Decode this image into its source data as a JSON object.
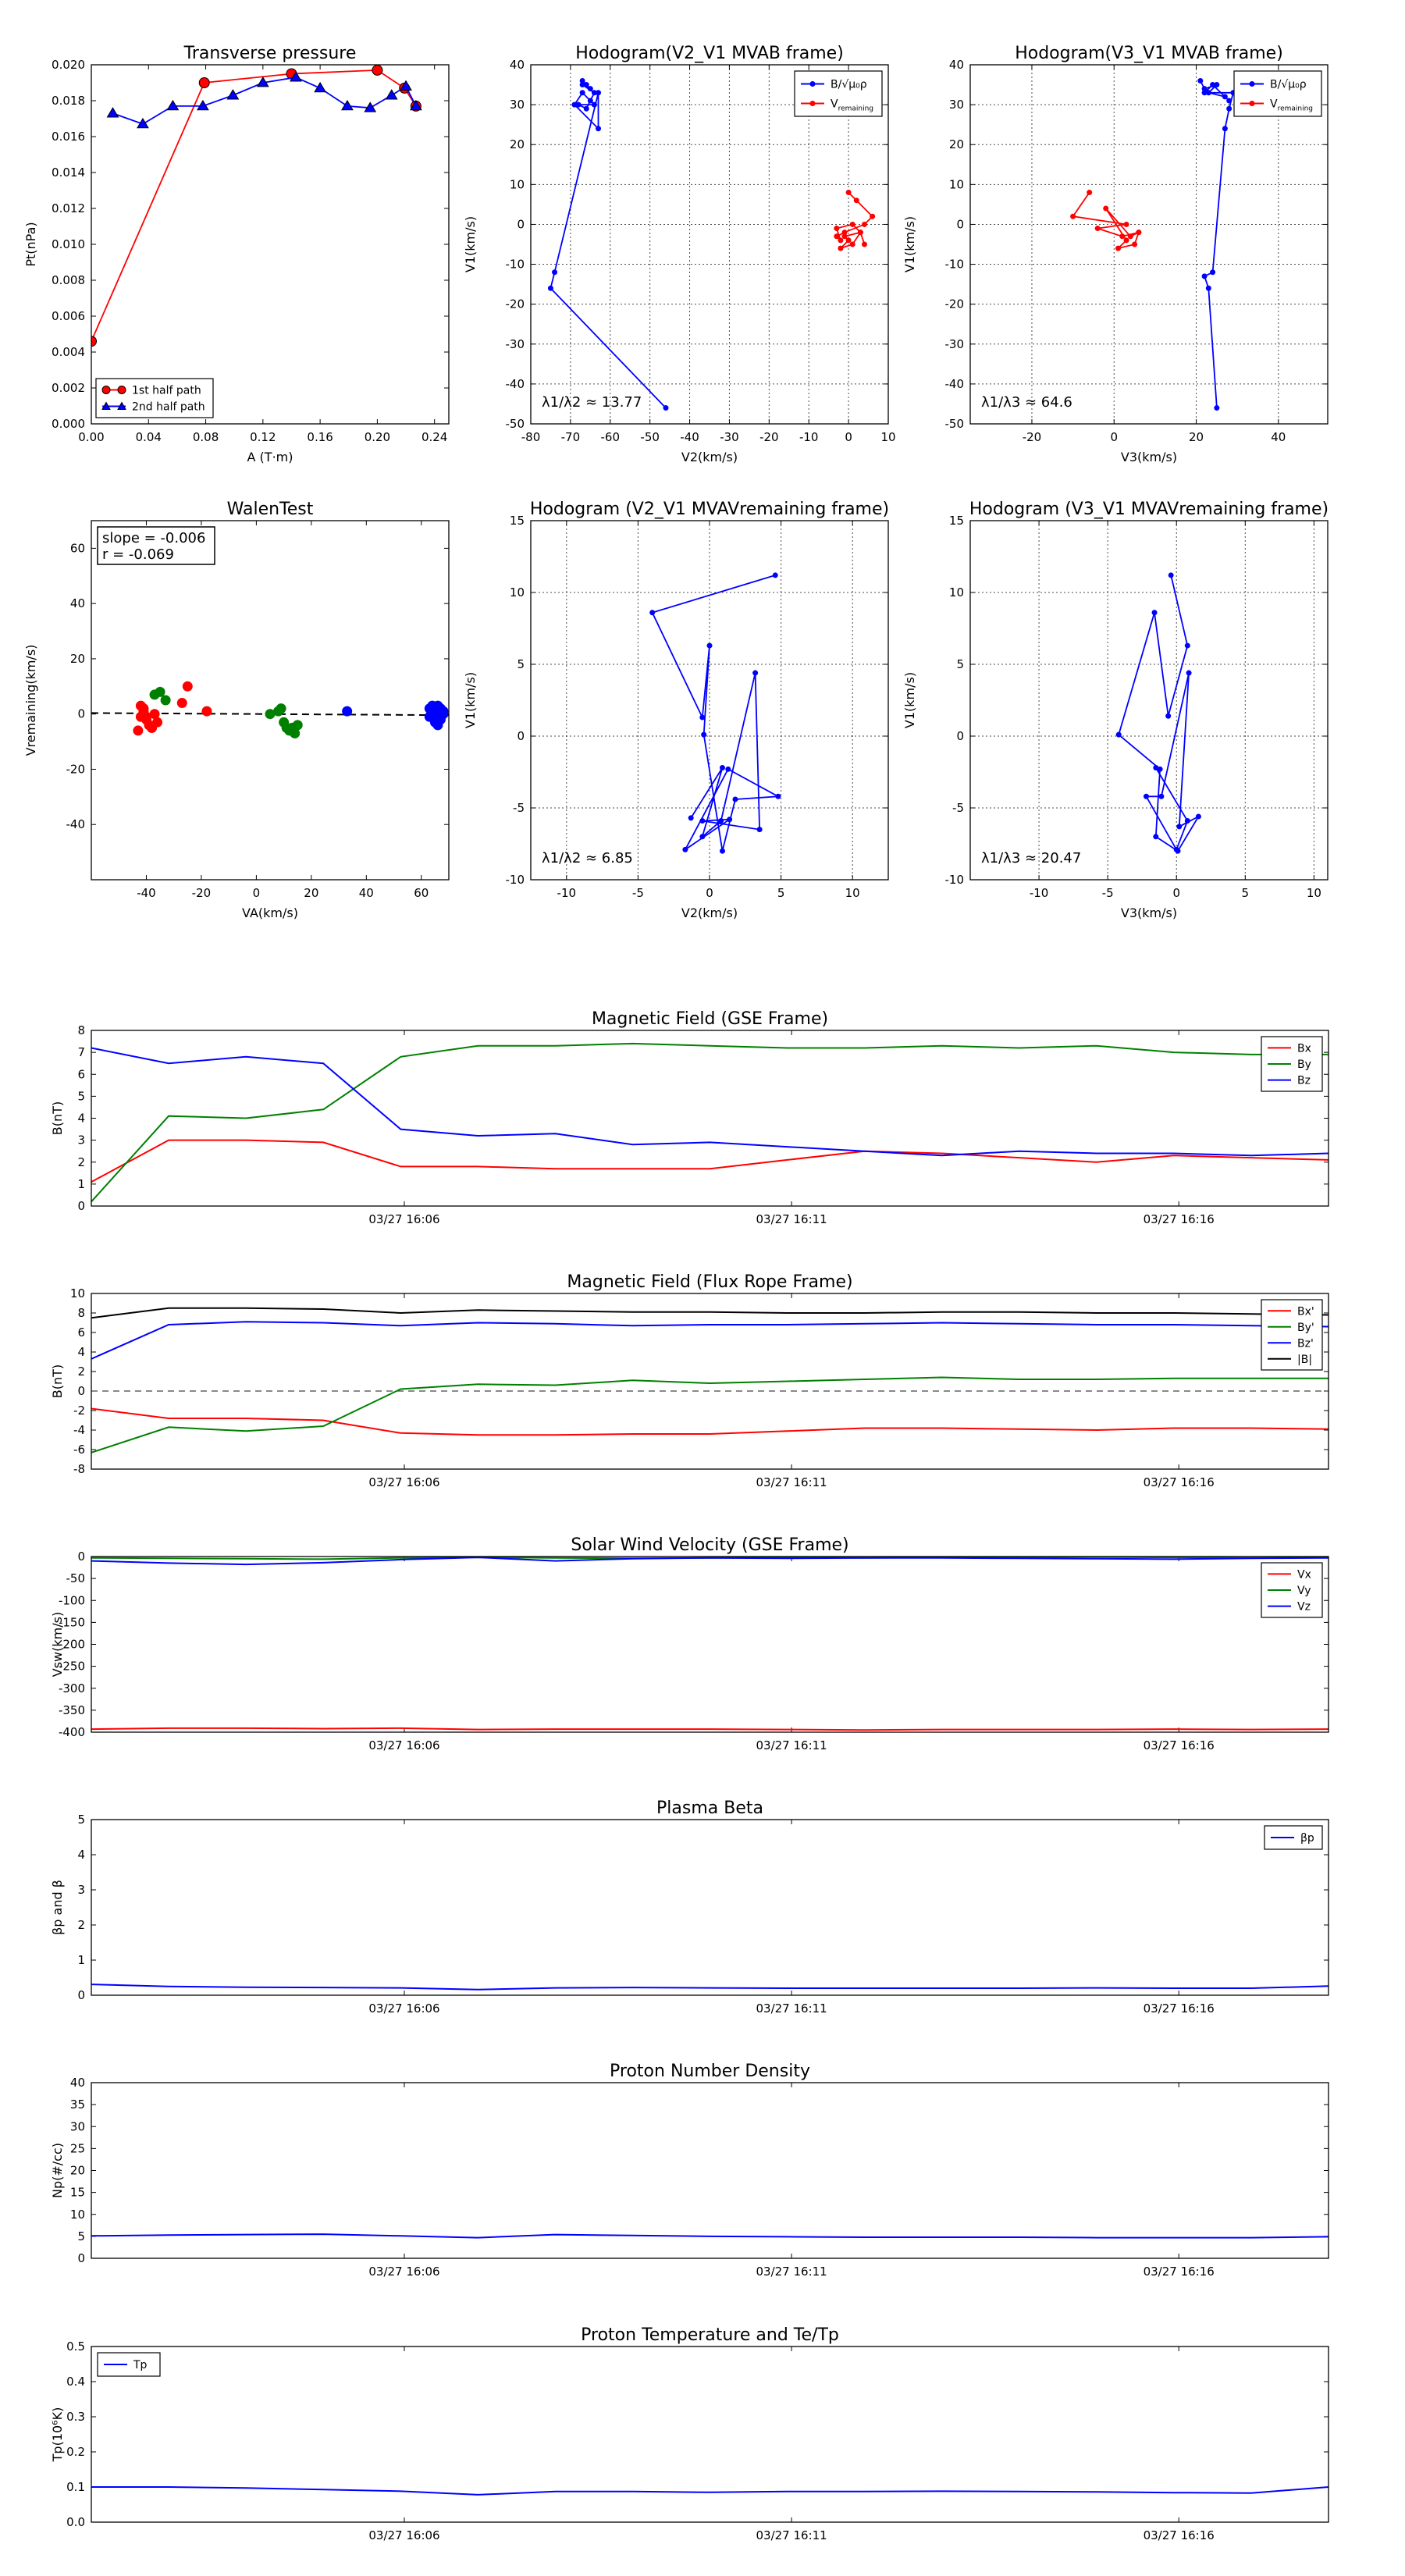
{
  "colors": {
    "red": "#ff0000",
    "green": "#008000",
    "blue": "#0000ff",
    "black": "#000000",
    "gray": "#888888"
  },
  "time_ticks": [
    "03/27 16:06",
    "03/27 16:11",
    "03/27 16:16"
  ],
  "chart_data": [
    {
      "id": "tp",
      "type": "line",
      "title": "Transverse pressure",
      "xlabel": "A (T·m)",
      "ylabel": "Pt(nPa)",
      "xlim": [
        0,
        0.25
      ],
      "ylim": [
        0,
        0.02
      ],
      "xticks": [
        0.0,
        0.04,
        0.08,
        0.12,
        0.16,
        0.2,
        0.24
      ],
      "xtick_decimals": 2,
      "yticks": [
        0.0,
        0.002,
        0.004,
        0.006,
        0.008,
        0.01,
        0.012,
        0.014,
        0.016,
        0.018,
        0.02
      ],
      "ytick_decimals": 3,
      "grid": false,
      "legend": "lower-left",
      "series": [
        {
          "name": "1st half path",
          "color": "#ff0000",
          "marker": "circle",
          "x": [
            0.0,
            0.079,
            0.14,
            0.2,
            0.219,
            0.227
          ],
          "y": [
            0.0046,
            0.019,
            0.0195,
            0.0197,
            0.0187,
            0.0177
          ]
        },
        {
          "name": "2nd half path",
          "color": "#0000ff",
          "marker": "triangle",
          "x": [
            0.015,
            0.036,
            0.057,
            0.078,
            0.099,
            0.12,
            0.143,
            0.16,
            0.179,
            0.195,
            0.21,
            0.22,
            0.227
          ],
          "y": [
            0.0173,
            0.0167,
            0.0177,
            0.0177,
            0.0183,
            0.019,
            0.0193,
            0.0187,
            0.0177,
            0.0176,
            0.0183,
            0.0188,
            0.0177
          ]
        }
      ]
    },
    {
      "id": "h1",
      "type": "line",
      "title": "Hodogram(V2_V1 MVAB frame)",
      "xlabel": "V2(km/s)",
      "ylabel": "V1(km/s)",
      "xlim": [
        -80,
        10
      ],
      "ylim": [
        -50,
        40
      ],
      "xticks": [
        -80,
        -70,
        -60,
        -50,
        -40,
        -30,
        -20,
        -10,
        0,
        10
      ],
      "yticks": [
        -50,
        -40,
        -30,
        -20,
        -10,
        0,
        10,
        20,
        30,
        40
      ],
      "grid": true,
      "legend": "top-right",
      "annotation": "λ1/λ2 ≈ 13.77",
      "series": [
        {
          "name": "B/√μ0ρ",
          "color": "#0000ff",
          "x": [
            -66,
            -67,
            -65,
            -67,
            -64,
            -65,
            -66,
            -68,
            -64,
            -67,
            -69,
            -63,
            -63,
            -74,
            -75,
            -46
          ],
          "y": [
            35,
            36,
            34,
            35,
            33,
            31,
            29,
            30,
            30,
            33,
            30,
            24,
            33,
            -12,
            -16,
            -46
          ]
        },
        {
          "name": "Vremaining",
          "color": "#ff0000",
          "x": [
            0,
            2,
            6,
            4,
            -1,
            -3,
            -2,
            -3,
            1,
            3,
            1,
            -2,
            0,
            -1,
            3,
            4
          ],
          "y": [
            8,
            6,
            2,
            0,
            -2,
            -3,
            -4,
            -1,
            0,
            -2,
            -5,
            -6,
            -4,
            -3,
            -2,
            -5
          ]
        }
      ]
    },
    {
      "id": "h2",
      "type": "line",
      "title": "Hodogram(V3_V1 MVAB frame)",
      "xlabel": "V3(km/s)",
      "ylabel": "V1(km/s)",
      "xlim": [
        -35,
        52
      ],
      "ylim": [
        -50,
        40
      ],
      "xticks": [
        -20,
        0,
        20,
        40
      ],
      "yticks": [
        -50,
        -40,
        -30,
        -20,
        -10,
        0,
        10,
        20,
        30,
        40
      ],
      "grid": true,
      "legend": "top-right",
      "annotation": "λ1/λ3 ≈ 64.6",
      "series": [
        {
          "name": "B/√μ0ρ",
          "color": "#0000ff",
          "x": [
            21,
            22,
            25,
            23,
            27,
            28,
            24,
            22,
            29,
            28,
            27,
            24,
            22,
            23,
            25
          ],
          "y": [
            36,
            34,
            35,
            33,
            32,
            31,
            35,
            33,
            33,
            29,
            24,
            -12,
            -13,
            -16,
            -46
          ]
        },
        {
          "name": "Vremaining",
          "color": "#ff0000",
          "x": [
            -6,
            -10,
            3,
            -4,
            2,
            6,
            5,
            1,
            3,
            -2,
            4,
            6
          ],
          "y": [
            8,
            2,
            0,
            -1,
            -3,
            -2,
            -5,
            -6,
            -4,
            4,
            -3,
            -2
          ]
        }
      ]
    },
    {
      "id": "walen",
      "type": "scatter",
      "title": "WalenTest",
      "xlabel": "VA(km/s)",
      "ylabel": "Vremaining(km/s)",
      "xlim": [
        -60,
        70
      ],
      "ylim": [
        -60,
        70
      ],
      "xticks": [
        -40,
        -20,
        0,
        20,
        40,
        60
      ],
      "yticks": [
        -40,
        -20,
        0,
        20,
        40,
        60
      ],
      "grid": false,
      "legend": "top-left",
      "fit_label": "slope = -0.006\nr = -0.069",
      "fit_line": {
        "slope": -0.006,
        "intercept": 0.0
      },
      "series": [
        {
          "name": "red",
          "color": "#ff0000",
          "x": [
            -42,
            -41,
            -40,
            -39,
            -38,
            -37,
            -43,
            -41,
            -36,
            -40,
            -25,
            -27,
            -18,
            -42,
            -38
          ],
          "y": [
            3,
            1,
            -2,
            -4,
            -5,
            0,
            -6,
            2,
            -3,
            -1,
            10,
            4,
            1,
            -1,
            -5
          ]
        },
        {
          "name": "green",
          "color": "#008000",
          "x": [
            -35,
            -33,
            -37,
            5,
            9,
            11,
            12,
            14,
            15,
            10,
            8,
            13
          ],
          "y": [
            8,
            5,
            7,
            0,
            2,
            -5,
            -6,
            -7,
            -4,
            -3,
            1,
            -5
          ]
        },
        {
          "name": "blue",
          "color": "#0000ff",
          "x": [
            33,
            63,
            64,
            65,
            66,
            67,
            68,
            64,
            65,
            66,
            67,
            68,
            63,
            65,
            66
          ],
          "y": [
            1,
            2,
            1,
            0,
            -1,
            -2,
            0,
            3,
            -3,
            -4,
            2,
            1,
            -1,
            -2,
            3
          ]
        }
      ]
    },
    {
      "id": "h3",
      "type": "line",
      "title": "Hodogram (V2_V1 MVAVremaining frame)",
      "xlabel": "V2(km/s)",
      "ylabel": "V1(km/s)",
      "xlim": [
        -12.5,
        12.5
      ],
      "ylim": [
        -10,
        15
      ],
      "xticks": [
        -10,
        -5,
        0,
        5,
        10
      ],
      "yticks": [
        -10,
        -5,
        0,
        5,
        10,
        15
      ],
      "grid": true,
      "annotation": "λ1/λ2 ≈ 6.85",
      "series": [
        {
          "name": "",
          "color": "#0000ff",
          "x": [
            4.6,
            -4.0,
            -0.5,
            0.0,
            -0.4,
            0.9,
            1.8,
            4.8,
            1.3,
            -1.7,
            1.4,
            -0.5,
            3.5,
            3.2,
            0.8,
            -0.5,
            0.9,
            -1.3
          ],
          "y": [
            11.2,
            8.6,
            1.3,
            6.3,
            0.1,
            -8.0,
            -4.4,
            -4.2,
            -2.3,
            -7.9,
            -5.8,
            -5.9,
            -6.5,
            4.4,
            -5.9,
            -7.0,
            -2.2,
            -5.7
          ]
        }
      ]
    },
    {
      "id": "h4",
      "type": "line",
      "title": "Hodogram (V3_V1 MVAVremaining frame)",
      "xlabel": "V3(km/s)",
      "ylabel": "V1(km/s)",
      "xlim": [
        -15,
        11
      ],
      "ylim": [
        -10,
        15
      ],
      "xticks": [
        -10,
        -5,
        0,
        5,
        10
      ],
      "yticks": [
        -10,
        -5,
        0,
        5,
        10,
        15
      ],
      "grid": true,
      "annotation": "λ1/λ3 ≈ 20.47",
      "series": [
        {
          "name": "",
          "color": "#0000ff",
          "x": [
            -0.4,
            0.8,
            -0.6,
            -1.6,
            -4.2,
            -1.2,
            -1.5,
            0.1,
            1.6,
            0.2,
            0.9,
            -1.1,
            -2.2,
            0.0,
            0.8,
            -1.5
          ],
          "y": [
            11.2,
            6.3,
            1.4,
            8.6,
            0.1,
            -2.3,
            -7.0,
            -8.0,
            -5.6,
            -6.3,
            4.4,
            -4.2,
            -4.2,
            -7.9,
            -5.9,
            -2.2
          ]
        }
      ]
    },
    {
      "id": "mag_gse",
      "type": "line",
      "title": "Magnetic Field (GSE Frame)",
      "ylabel": "B(nT)",
      "ylim": [
        0,
        8
      ],
      "yticks": [
        0,
        1,
        2,
        3,
        4,
        5,
        6,
        7,
        8
      ],
      "grid": false,
      "legend": "top-right",
      "x": [
        0,
        1,
        2,
        3,
        4,
        5,
        6,
        7,
        8,
        9,
        10,
        11,
        12,
        13,
        14,
        15,
        16
      ],
      "series": [
        {
          "name": "Bx",
          "color": "#ff0000",
          "values": [
            1.1,
            3.0,
            3.0,
            2.9,
            1.8,
            1.8,
            1.7,
            1.7,
            1.7,
            2.1,
            2.5,
            2.4,
            2.2,
            2.0,
            2.3,
            2.2,
            2.1
          ]
        },
        {
          "name": "By",
          "color": "#008000",
          "values": [
            0.2,
            4.1,
            4.0,
            4.4,
            6.8,
            7.3,
            7.3,
            7.4,
            7.3,
            7.2,
            7.2,
            7.3,
            7.2,
            7.3,
            7.0,
            6.9,
            6.9
          ]
        },
        {
          "name": "Bz",
          "color": "#0000ff",
          "values": [
            7.2,
            6.5,
            6.8,
            6.5,
            3.5,
            3.2,
            3.3,
            2.8,
            2.9,
            2.7,
            2.5,
            2.3,
            2.5,
            2.4,
            2.4,
            2.3,
            2.4
          ]
        }
      ]
    },
    {
      "id": "mag_fr",
      "type": "line",
      "title": "Magnetic Field (Flux Rope Frame)",
      "ylabel": "B(nT)",
      "ylim": [
        -8,
        10
      ],
      "yticks": [
        -8,
        -6,
        -4,
        -2,
        0,
        2,
        4,
        6,
        8,
        10
      ],
      "grid": false,
      "legend": "top-right",
      "zero_line": true,
      "x": [
        0,
        1,
        2,
        3,
        4,
        5,
        6,
        7,
        8,
        9,
        10,
        11,
        12,
        13,
        14,
        15,
        16
      ],
      "series": [
        {
          "name": "Bx'",
          "color": "#ff0000",
          "values": [
            -1.8,
            -2.8,
            -2.8,
            -3.0,
            -4.3,
            -4.5,
            -4.5,
            -4.4,
            -4.4,
            -4.1,
            -3.8,
            -3.8,
            -3.9,
            -4.0,
            -3.8,
            -3.8,
            -3.9
          ]
        },
        {
          "name": "By'",
          "color": "#008000",
          "values": [
            -6.3,
            -3.7,
            -4.1,
            -3.6,
            0.2,
            0.7,
            0.6,
            1.1,
            0.8,
            1.0,
            1.2,
            1.4,
            1.2,
            1.2,
            1.3,
            1.3,
            1.3
          ]
        },
        {
          "name": "Bz'",
          "color": "#0000ff",
          "values": [
            3.3,
            6.8,
            7.1,
            7.0,
            6.7,
            7.0,
            6.9,
            6.7,
            6.8,
            6.8,
            6.9,
            7.0,
            6.9,
            6.8,
            6.8,
            6.7,
            6.6
          ]
        },
        {
          "name": "|B|",
          "color": "#000000",
          "values": [
            7.5,
            8.5,
            8.5,
            8.4,
            8.0,
            8.3,
            8.2,
            8.1,
            8.1,
            8.0,
            8.0,
            8.1,
            8.1,
            8.0,
            8.0,
            7.9,
            7.8
          ]
        }
      ]
    },
    {
      "id": "vsw",
      "type": "line",
      "title": "Solar Wind Velocity (GSE Frame)",
      "ylabel": "Vsw(km/s)",
      "ylim": [
        -400,
        0
      ],
      "yticks": [
        -400,
        -350,
        -300,
        -250,
        -200,
        -150,
        -100,
        -50,
        0
      ],
      "grid": false,
      "legend": "top-right",
      "x": [
        0,
        1,
        2,
        3,
        4,
        5,
        6,
        7,
        8,
        9,
        10,
        11,
        12,
        13,
        14,
        15,
        16
      ],
      "series": [
        {
          "name": "Vx",
          "color": "#ff0000",
          "values": [
            -393,
            -391,
            -391,
            -392,
            -391,
            -394,
            -393,
            -393,
            -393,
            -394,
            -395,
            -394,
            -394,
            -394,
            -393,
            -394,
            -393
          ]
        },
        {
          "name": "Vy",
          "color": "#008000",
          "values": [
            -3,
            -4,
            -5,
            -6,
            -3,
            -2,
            -3,
            -4,
            -3,
            -2,
            -3,
            -2,
            -2,
            -1,
            -2,
            -3,
            -2
          ]
        },
        {
          "name": "Vz",
          "color": "#0000ff",
          "values": [
            -10,
            -15,
            -18,
            -14,
            -7,
            -2,
            -10,
            -5,
            -3,
            -4,
            -3,
            -3,
            -4,
            -5,
            -6,
            -4,
            -3
          ]
        }
      ]
    },
    {
      "id": "beta",
      "type": "line",
      "title": "Plasma Beta",
      "ylabel": "βp and β",
      "ylim": [
        0,
        5
      ],
      "yticks": [
        0,
        1,
        2,
        3,
        4,
        5
      ],
      "grid": false,
      "legend": "top-right",
      "x": [
        0,
        1,
        2,
        3,
        4,
        5,
        6,
        7,
        8,
        9,
        10,
        11,
        12,
        13,
        14,
        15,
        16
      ],
      "series": [
        {
          "name": "βp",
          "color": "#0000ff",
          "values": [
            0.31,
            0.25,
            0.23,
            0.22,
            0.21,
            0.16,
            0.21,
            0.22,
            0.21,
            0.2,
            0.2,
            0.2,
            0.2,
            0.21,
            0.2,
            0.2,
            0.26
          ]
        }
      ]
    },
    {
      "id": "np",
      "type": "line",
      "title": "Proton Number Density",
      "ylabel": "Np(#/cc)",
      "ylim": [
        0,
        40
      ],
      "yticks": [
        0,
        5,
        10,
        15,
        20,
        25,
        30,
        35,
        40
      ],
      "grid": false,
      "x": [
        0,
        1,
        2,
        3,
        4,
        5,
        6,
        7,
        8,
        9,
        10,
        11,
        12,
        13,
        14,
        15,
        16
      ],
      "series": [
        {
          "name": "",
          "color": "#0000ff",
          "values": [
            5.1,
            5.3,
            5.4,
            5.5,
            5.1,
            4.7,
            5.4,
            5.2,
            5.0,
            4.9,
            4.8,
            4.8,
            4.8,
            4.7,
            4.7,
            4.7,
            4.9
          ]
        }
      ]
    },
    {
      "id": "tp_temp",
      "type": "line",
      "title": "Proton Temperature and Te/Tp",
      "ylabel": "Tp(10⁶K)",
      "ylim": [
        0,
        0.5
      ],
      "yticks": [
        0.0,
        0.1,
        0.2,
        0.3,
        0.4,
        0.5
      ],
      "ytick_decimals": 1,
      "grid": false,
      "legend": "top-left",
      "x": [
        0,
        1,
        2,
        3,
        4,
        5,
        6,
        7,
        8,
        9,
        10,
        11,
        12,
        13,
        14,
        15,
        16
      ],
      "series": [
        {
          "name": "Tp",
          "color": "#0000ff",
          "values": [
            0.1,
            0.1,
            0.097,
            0.093,
            0.088,
            0.078,
            0.087,
            0.087,
            0.085,
            0.087,
            0.087,
            0.088,
            0.087,
            0.086,
            0.084,
            0.083,
            0.1
          ]
        }
      ]
    }
  ]
}
